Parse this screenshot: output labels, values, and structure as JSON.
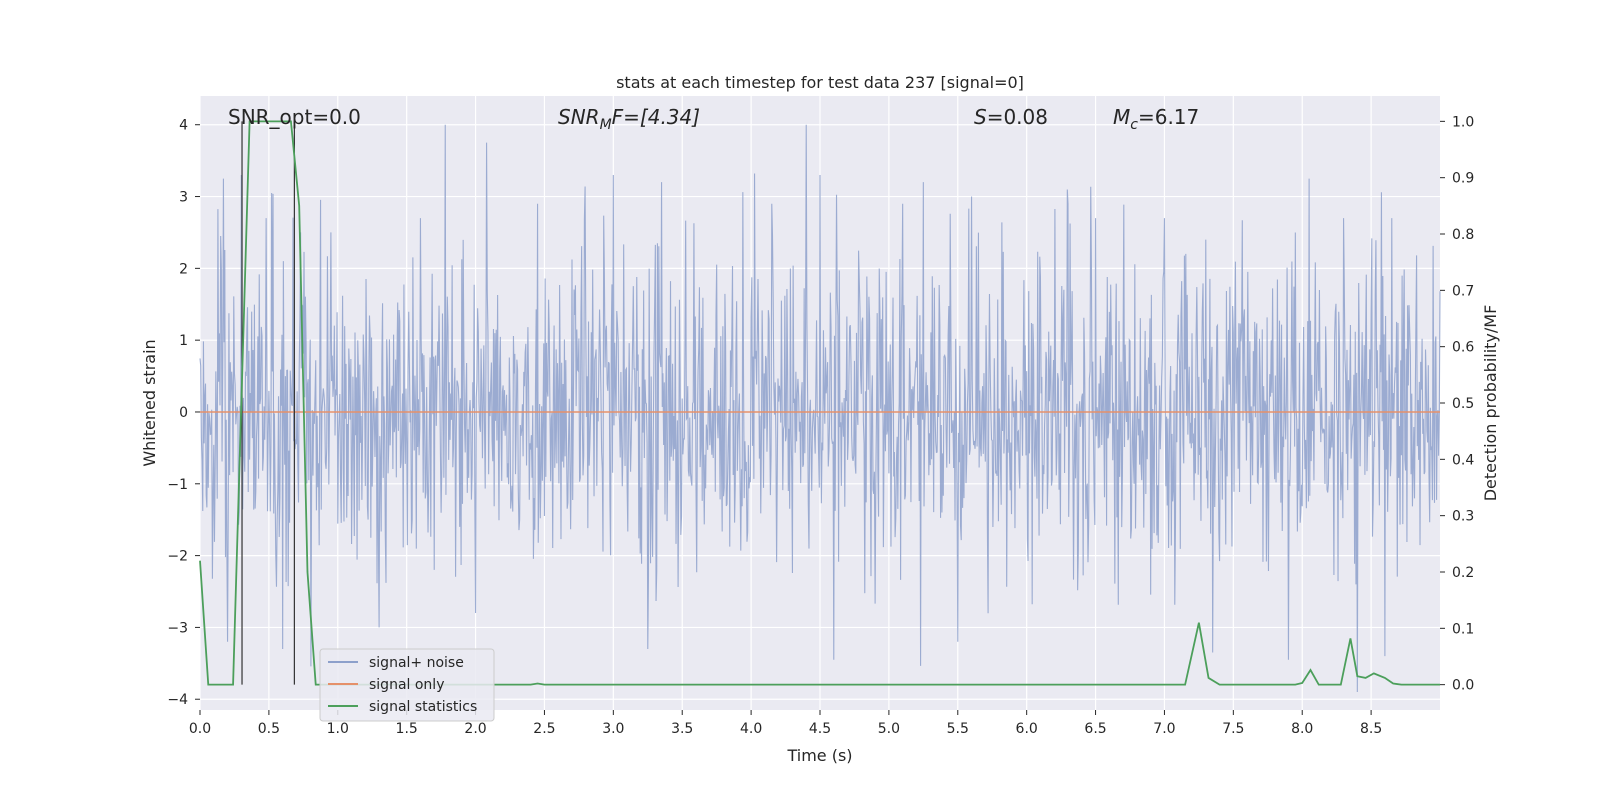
{
  "chart_data": {
    "type": "line",
    "title": "stats at each timestep for test data 237 [signal=0]",
    "xlabel": "Time (s)",
    "ylabel": "Whitened strain",
    "y2label": "Detection probability/MF",
    "xlim": [
      0,
      9.0
    ],
    "ylim": [
      -4.15,
      4.4
    ],
    "y2lim": [
      -0.045,
      1.045
    ],
    "x_ticks": [
      0.0,
      0.5,
      1.0,
      1.5,
      2.0,
      2.5,
      3.0,
      3.5,
      4.0,
      4.5,
      5.0,
      5.5,
      6.0,
      6.5,
      7.0,
      7.5,
      8.0,
      8.5
    ],
    "x_tick_labels": [
      "0.0",
      "0.5",
      "1.0",
      "1.5",
      "2.0",
      "2.5",
      "3.0",
      "3.5",
      "4.0",
      "4.5",
      "5.0",
      "5.5",
      "6.0",
      "6.5",
      "7.0",
      "7.5",
      "8.0",
      "8.5"
    ],
    "y_ticks": [
      4,
      3,
      2,
      1,
      0,
      -1,
      -2,
      -3,
      -4
    ],
    "y_tick_labels": [
      "4",
      "3",
      "2",
      "1",
      "0",
      "−1",
      "−2",
      "−3",
      "−4"
    ],
    "y2_ticks": [
      1.0,
      0.9,
      0.8,
      0.7,
      0.6,
      0.5,
      0.4,
      0.3,
      0.2,
      0.1,
      0.0
    ],
    "y2_tick_labels": [
      "1.0",
      "0.9",
      "0.8",
      "0.7",
      "0.6",
      "0.5",
      "0.4",
      "0.3",
      "0.2",
      "0.1",
      "0.0"
    ],
    "grid": true,
    "legend_position": "lower-left",
    "annotations": {
      "snr_opt": "SNR_opt=0.0",
      "snr_mf": "SNR",
      "snr_mf_sub": "M",
      "snr_mf_rest": "F=[4.34]",
      "s_label": "S",
      "s_value": "=0.08",
      "mc_label": "M",
      "mc_sub": "c",
      "mc_value": "=6.17"
    },
    "vertical_markers_x": [
      0.305,
      0.685
    ],
    "series": [
      {
        "name": "signal+ noise",
        "color": "#8da0cb",
        "kind": "noise",
        "amplitude_typical": 1.1,
        "amplitude_max": 4.0,
        "notable_peaks": [
          [
            0.15,
            2.45
          ],
          [
            0.17,
            3.25
          ],
          [
            0.3,
            3.3
          ],
          [
            0.48,
            2.7
          ],
          [
            0.52,
            3.05
          ],
          [
            0.73,
            2.5
          ],
          [
            0.95,
            2.5
          ],
          [
            1.3,
            2.4
          ],
          [
            1.6,
            2.7
          ],
          [
            2.08,
            3.75
          ],
          [
            2.45,
            2.9
          ],
          [
            3.0,
            3.3
          ],
          [
            3.35,
            3.2
          ],
          [
            4.15,
            2.9
          ],
          [
            4.4,
            4.0
          ],
          [
            4.5,
            3.3
          ],
          [
            5.1,
            2.9
          ],
          [
            5.25,
            3.2
          ],
          [
            5.6,
            3.0
          ],
          [
            6.3,
            2.9
          ],
          [
            6.5,
            2.7
          ],
          [
            7.0,
            2.7
          ],
          [
            7.3,
            2.4
          ],
          [
            7.95,
            2.5
          ],
          [
            8.05,
            3.25
          ],
          [
            8.3,
            2.7
          ],
          [
            8.65,
            2.7
          ],
          [
            0.2,
            -3.2
          ],
          [
            0.6,
            -3.3
          ],
          [
            1.3,
            -3.0
          ],
          [
            2.0,
            -2.8
          ],
          [
            3.25,
            -3.3
          ],
          [
            4.6,
            -3.45
          ],
          [
            5.5,
            -3.2
          ],
          [
            7.35,
            -3.35
          ],
          [
            7.9,
            -3.45
          ],
          [
            8.4,
            -3.9
          ],
          [
            8.6,
            -3.4
          ]
        ]
      },
      {
        "name": "signal only",
        "color": "#e5906a",
        "kind": "flat",
        "value": 0
      },
      {
        "name": "signal statistics",
        "color": "#4c9f5b",
        "axis": "right",
        "x": [
          0.0,
          0.06,
          0.12,
          0.18,
          0.24,
          0.3,
          0.36,
          0.42,
          0.48,
          0.54,
          0.6,
          0.66,
          0.72,
          0.78,
          0.84,
          0.9,
          2.4,
          2.45,
          2.5,
          7.15,
          7.25,
          7.32,
          7.4,
          7.95,
          8.0,
          8.06,
          8.12,
          8.28,
          8.35,
          8.4,
          8.46,
          8.52,
          8.6,
          8.66,
          8.72,
          8.8,
          9.0
        ],
        "values": [
          0.22,
          0.0,
          0.0,
          0.0,
          0.0,
          0.5,
          1.0,
          1.0,
          1.0,
          1.0,
          1.0,
          1.0,
          0.85,
          0.2,
          0.0,
          0.0,
          0.0,
          0.002,
          0.0,
          0.0,
          0.11,
          0.012,
          0.0,
          0.0,
          0.003,
          0.026,
          0.0,
          0.0,
          0.082,
          0.015,
          0.012,
          0.02,
          0.012,
          0.002,
          0.0,
          0.0,
          0.0
        ]
      }
    ]
  }
}
